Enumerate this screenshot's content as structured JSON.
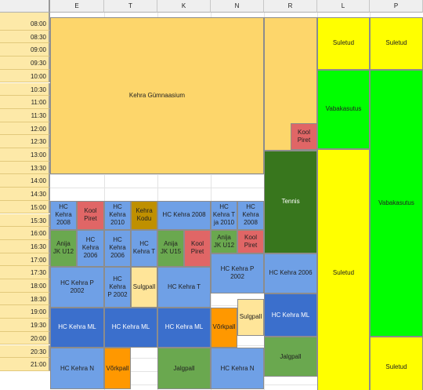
{
  "colors": {
    "gymnasium": "#fdd66b",
    "team_light": "#6fa0e6",
    "team_dark": "#3b6fcc",
    "school": "#e06666",
    "green_light": "#6aa84f",
    "green_dark": "#38761d",
    "cream": "#ffe599",
    "orange": "#ff9800",
    "home": "#bf9000",
    "yellow": "#ffff00",
    "lime": "#00ff00",
    "header_bg": "#efefef",
    "time_bg": "#fde9a8"
  },
  "columns": [
    "E",
    "T",
    "K",
    "N",
    "R",
    "L",
    "P"
  ],
  "times": [
    "08:00",
    "08:30",
    "09:00",
    "09:30",
    "10:00",
    "10:30",
    "11:00",
    "11:30",
    "12:00",
    "12:30",
    "13:00",
    "13:30",
    "14:00",
    "14:30",
    "15:00",
    "15:30",
    "16:00",
    "16:30",
    "17:00",
    "17:30",
    "18:00",
    "18:30",
    "19:00",
    "19:30",
    "20:00",
    "20:30",
    "21:00"
  ],
  "blocks": [
    {
      "label": "Kehra Gümnaasium",
      "color": "gymnasium"
    },
    {
      "label": "",
      "color": "gymnasium"
    },
    {
      "label": "Kool\nPiret",
      "color": "school"
    },
    {
      "label": "Tennis",
      "color": "green_dark"
    },
    {
      "label": "Suletud",
      "color": "yellow"
    },
    {
      "label": "Vabakasutus",
      "color": "lime"
    },
    {
      "label": "Suletud",
      "color": "yellow"
    },
    {
      "label": "Suletud",
      "color": "yellow"
    },
    {
      "label": "Vabakasutus",
      "color": "lime"
    },
    {
      "label": "Suletud",
      "color": "yellow"
    },
    {
      "label": "HC\nKehra\n2008",
      "color": "team_light"
    },
    {
      "label": "Kool\nPiret",
      "color": "school"
    },
    {
      "label": "HC\nKehra\n2010",
      "color": "team_light"
    },
    {
      "label": "Kehra\nKodu",
      "color": "home"
    },
    {
      "label": "HC Kehra 2008",
      "color": "team_light"
    },
    {
      "label": "HC\nKehra T\nja 2010",
      "color": "team_light"
    },
    {
      "label": "HC\nKehra\n2008",
      "color": "team_light"
    },
    {
      "label": "Anija\nJK U12",
      "color": "green_light"
    },
    {
      "label": "HC\nKehra\n2006",
      "color": "team_light"
    },
    {
      "label": "HC\nKehra\n2006",
      "color": "team_light"
    },
    {
      "label": "HC\nKehra T",
      "color": "team_light"
    },
    {
      "label": "Anija\nJK U15",
      "color": "green_light"
    },
    {
      "label": "Kool\nPiret",
      "color": "school"
    },
    {
      "label": "Anija\nJK U12",
      "color": "green_light"
    },
    {
      "label": "Kool\nPiret",
      "color": "school"
    },
    {
      "label": "HC Kehra P\n2002",
      "color": "team_light"
    },
    {
      "label": "HC Kehra 2006",
      "color": "team_light"
    },
    {
      "label": "HC Kehra P\n2002",
      "color": "team_light"
    },
    {
      "label": "HC\nKehra\nP 2002",
      "color": "team_light"
    },
    {
      "label": "Sulgpall",
      "color": "cream"
    },
    {
      "label": "HC Kehra T",
      "color": "team_light"
    },
    {
      "label": "Sulgpall",
      "color": "cream"
    },
    {
      "label": "HC Kehra ML",
      "color": "team_dark"
    },
    {
      "label": "HC Kehra ML",
      "color": "team_dark"
    },
    {
      "label": "HC Kehra ML",
      "color": "team_dark"
    },
    {
      "label": "HC Kehra ML",
      "color": "team_dark"
    },
    {
      "label": "Võrkpall",
      "color": "orange"
    },
    {
      "label": "Jalgpall",
      "color": "green_light"
    },
    {
      "label": "HC Kehra N",
      "color": "team_light"
    },
    {
      "label": "Võrkpall",
      "color": "orange"
    },
    {
      "label": "Jalgpall",
      "color": "green_light"
    },
    {
      "label": "HC Kehra N",
      "color": "team_light"
    }
  ]
}
